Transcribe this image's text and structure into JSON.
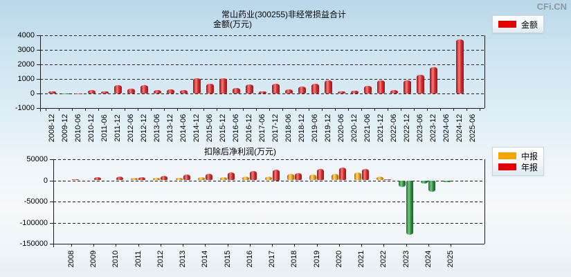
{
  "logo_text": "CFi.CN",
  "colors": {
    "legend_amount": "#e60000",
    "legend_interim": "#f5a500",
    "legend_annual": "#e60000",
    "negative_bar": "#2e8e42"
  },
  "chart_data": [
    {
      "type": "bar",
      "title": "常山药业(300255)非经常损益合计",
      "subtitle": "金额(万元)",
      "legend": [
        {
          "label": "金额",
          "color": "#e60000"
        }
      ],
      "grid": true,
      "legend_position": "top-right",
      "ylim": [
        -1000,
        4000
      ],
      "yticks": [
        4000,
        3000,
        2000,
        1000,
        0,
        -1000
      ],
      "categories": [
        "2008-12",
        "2009-12",
        "2010-06",
        "2010-12",
        "2011-06",
        "2011-12",
        "2012-06",
        "2012-12",
        "2013-06",
        "2013-12",
        "2014-06",
        "2014-12",
        "2015-06",
        "2015-12",
        "2016-06",
        "2016-12",
        "2017-06",
        "2017-12",
        "2018-06",
        "2018-12",
        "2019-06",
        "2019-12",
        "2020-06",
        "2020-12",
        "2021-06",
        "2021-12",
        "2022-06",
        "2022-12",
        "2023-06",
        "2023-12",
        "2024-06",
        "2024-12",
        "2025-06"
      ],
      "values": [
        150,
        -60,
        20,
        260,
        140,
        550,
        350,
        550,
        215,
        290,
        215,
        1030,
        690,
        1050,
        380,
        615,
        120,
        680,
        275,
        490,
        680,
        900,
        125,
        170,
        510,
        910,
        250,
        890,
        1280,
        1800,
        0,
        3700,
        0
      ]
    },
    {
      "type": "bar",
      "title": "扣除后净利润(万元)",
      "legend": [
        {
          "label": "中报",
          "color": "#f5a500"
        },
        {
          "label": "年报",
          "color": "#e60000"
        }
      ],
      "grid": true,
      "legend_position": "top-right",
      "ylim": [
        -150000,
        50000
      ],
      "yticks": [
        50000,
        0,
        -50000,
        -100000,
        -150000
      ],
      "categories": [
        "2008",
        "2009",
        "2010",
        "2011",
        "2012",
        "2013",
        "2014",
        "2015",
        "2016",
        "2017",
        "2018",
        "2019",
        "2020",
        "2021",
        "2022",
        "2023",
        "2024",
        "2025"
      ],
      "series": [
        {
          "name": "中报",
          "values": [
            null,
            null,
            null,
            5500,
            6100,
            6100,
            6700,
            7800,
            8300,
            9400,
            15000,
            13900,
            15500,
            18300,
            8300,
            -15000,
            -7000,
            -3900
          ]
        },
        {
          "name": "年报",
          "values": [
            2800,
            7800,
            9400,
            7200,
            11100,
            13300,
            15500,
            18300,
            22000,
            25000,
            16700,
            27800,
            30500,
            27800,
            2800,
            -128000,
            -27800,
            null
          ]
        }
      ]
    }
  ]
}
